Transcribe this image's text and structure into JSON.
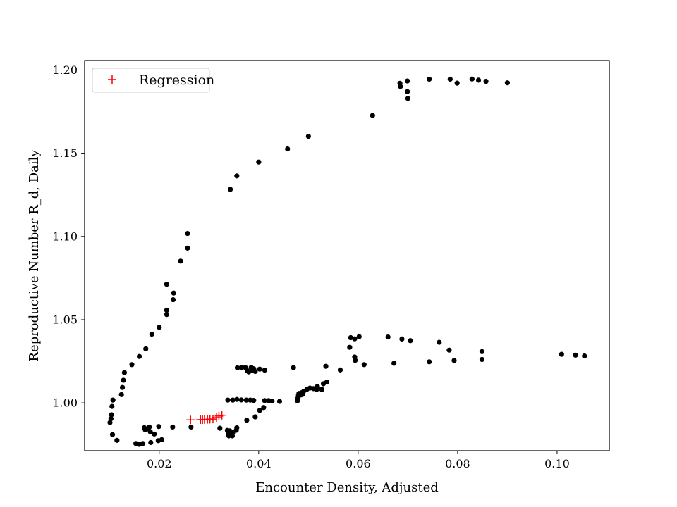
{
  "chart_data": {
    "type": "scatter",
    "xlabel": "Encounter Density, Adjusted",
    "ylabel": "Reproductive Number R_d, Daily",
    "xlim": [
      0.005,
      0.1105
    ],
    "ylim": [
      0.9713,
      1.2057
    ],
    "xticks": [
      0.02,
      0.04,
      0.06,
      0.08,
      0.1
    ],
    "xtick_labels": [
      "0.02",
      "0.04",
      "0.06",
      "0.08",
      "0.10"
    ],
    "yticks": [
      1.0,
      1.05,
      1.1,
      1.15,
      1.2
    ],
    "ytick_labels": [
      "1.00",
      "1.05",
      "1.10",
      "1.15",
      "1.20"
    ],
    "grid": false,
    "legend_position": "top-left",
    "series": [
      {
        "marker": "dot",
        "color": "#000000",
        "points": [
          [
            0.0101,
            0.9882
          ],
          [
            0.0103,
            0.9905
          ],
          [
            0.0104,
            0.9929
          ],
          [
            0.0105,
            0.9979
          ],
          [
            0.0107,
            1.0017
          ],
          [
            0.0106,
            0.981
          ],
          [
            0.0115,
            0.9775
          ],
          [
            0.0124,
            1.005
          ],
          [
            0.0126,
            1.0093
          ],
          [
            0.0128,
            1.0136
          ],
          [
            0.013,
            1.0182
          ],
          [
            0.0145,
            1.023
          ],
          [
            0.016,
            1.0279
          ],
          [
            0.0173,
            1.0325
          ],
          [
            0.0185,
            1.0413
          ],
          [
            0.02,
            1.0454
          ],
          [
            0.0215,
            1.0531
          ],
          [
            0.0215,
            1.0557
          ],
          [
            0.0215,
            1.0713
          ],
          [
            0.0228,
            1.062
          ],
          [
            0.0229,
            1.066
          ],
          [
            0.0243,
            1.0852
          ],
          [
            0.0257,
            1.093
          ],
          [
            0.0257,
            1.1018
          ],
          [
            0.0153,
            0.9756
          ],
          [
            0.016,
            0.9751
          ],
          [
            0.0167,
            0.9756
          ],
          [
            0.017,
            0.9851
          ],
          [
            0.0172,
            0.9838
          ],
          [
            0.0177,
            0.9844
          ],
          [
            0.018,
            0.9855
          ],
          [
            0.0182,
            0.9827
          ],
          [
            0.0183,
            0.9762
          ],
          [
            0.019,
            0.9813
          ],
          [
            0.0198,
            0.9773
          ],
          [
            0.0199,
            0.9858
          ],
          [
            0.0205,
            0.9779
          ],
          [
            0.0227,
            0.9855
          ],
          [
            0.0264,
            0.9855
          ],
          [
            0.0322,
            0.9848
          ],
          [
            0.0337,
            0.9835
          ],
          [
            0.0339,
            0.9812
          ],
          [
            0.034,
            0.9802
          ],
          [
            0.0342,
            0.9832
          ],
          [
            0.0345,
            0.9823
          ],
          [
            0.0347,
            0.9802
          ],
          [
            0.0348,
            0.9823
          ],
          [
            0.0355,
            0.9836
          ],
          [
            0.0356,
            0.9851
          ],
          [
            0.0376,
            0.9896
          ],
          [
            0.0393,
            0.9916
          ],
          [
            0.0402,
            0.9955
          ],
          [
            0.041,
            0.9972
          ],
          [
            0.0338,
            1.0017
          ],
          [
            0.0348,
            1.0017
          ],
          [
            0.0356,
            1.0021
          ],
          [
            0.0365,
            1.0018
          ],
          [
            0.0375,
            1.0017
          ],
          [
            0.0383,
            1.0017
          ],
          [
            0.039,
            1.0015
          ],
          [
            0.0412,
            1.0014
          ],
          [
            0.042,
            1.0014
          ],
          [
            0.0427,
            1.0011
          ],
          [
            0.0442,
            1.0009
          ],
          [
            0.0478,
            1.0013
          ],
          [
            0.0479,
            1.003
          ],
          [
            0.048,
            1.0048
          ],
          [
            0.0481,
            1.0057
          ],
          [
            0.0485,
            1.0048
          ],
          [
            0.0486,
            1.0061
          ],
          [
            0.0488,
            1.0051
          ],
          [
            0.049,
            1.0068
          ],
          [
            0.0497,
            1.0082
          ],
          [
            0.0503,
            1.0089
          ],
          [
            0.051,
            1.0086
          ],
          [
            0.0516,
            1.008
          ],
          [
            0.0518,
            1.0099
          ],
          [
            0.0519,
            1.0085
          ],
          [
            0.0527,
            1.0081
          ],
          [
            0.053,
            1.0115
          ],
          [
            0.0537,
            1.0125
          ],
          [
            0.0535,
            1.022
          ],
          [
            0.0357,
            1.0211
          ],
          [
            0.0365,
            1.0212
          ],
          [
            0.0373,
            1.0213
          ],
          [
            0.0377,
            1.0194
          ],
          [
            0.038,
            1.0186
          ],
          [
            0.0385,
            1.0213
          ],
          [
            0.0388,
            1.0195
          ],
          [
            0.039,
            1.0205
          ],
          [
            0.0393,
            1.0189
          ],
          [
            0.0402,
            1.0203
          ],
          [
            0.0412,
            1.0197
          ],
          [
            0.047,
            1.0212
          ],
          [
            0.0564,
            1.0198
          ],
          [
            0.0583,
            1.0334
          ],
          [
            0.0585,
            1.0392
          ],
          [
            0.0593,
            1.0385
          ],
          [
            0.0593,
            1.0276
          ],
          [
            0.0594,
            1.0256
          ],
          [
            0.0602,
            1.0398
          ],
          [
            0.0612,
            1.023
          ],
          [
            0.066,
            1.0396
          ],
          [
            0.0672,
            1.0238
          ],
          [
            0.0688,
            1.0384
          ],
          [
            0.0705,
            1.0374
          ],
          [
            0.0743,
            1.0247
          ],
          [
            0.0763,
            1.0364
          ],
          [
            0.0783,
            1.0317
          ],
          [
            0.0793,
            1.0255
          ],
          [
            0.0849,
            1.0308
          ],
          [
            0.0849,
            1.0261
          ],
          [
            0.1009,
            1.0292
          ],
          [
            0.1037,
            1.0287
          ],
          [
            0.1055,
            1.0282
          ],
          [
            0.0343,
            1.1283
          ],
          [
            0.0356,
            1.1364
          ],
          [
            0.04,
            1.1447
          ],
          [
            0.0458,
            1.1526
          ],
          [
            0.05,
            1.1602
          ],
          [
            0.0629,
            1.1727
          ],
          [
            0.0684,
            1.192
          ],
          [
            0.0685,
            1.1901
          ],
          [
            0.0699,
            1.1934
          ],
          [
            0.0699,
            1.187
          ],
          [
            0.07,
            1.1829
          ],
          [
            0.0743,
            1.1945
          ],
          [
            0.0785,
            1.1945
          ],
          [
            0.0799,
            1.1921
          ],
          [
            0.0829,
            1.1946
          ],
          [
            0.0842,
            1.1939
          ],
          [
            0.0857,
            1.1932
          ],
          [
            0.09,
            1.1923
          ]
        ]
      },
      {
        "name": "Regression",
        "marker": "plus",
        "color": "#ff0000",
        "points": [
          [
            0.0263,
            0.9898
          ],
          [
            0.0283,
            0.9899
          ],
          [
            0.0287,
            0.9899
          ],
          [
            0.0291,
            0.99
          ],
          [
            0.0297,
            0.9901
          ],
          [
            0.0302,
            0.9902
          ],
          [
            0.0308,
            0.9903
          ],
          [
            0.0315,
            0.9912
          ],
          [
            0.032,
            0.9921
          ],
          [
            0.0326,
            0.9926
          ]
        ]
      }
    ]
  }
}
